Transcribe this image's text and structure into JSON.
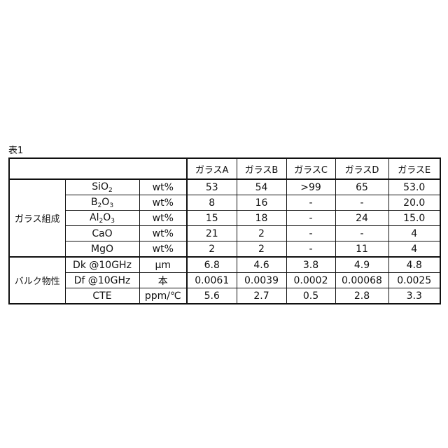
{
  "caption": "表1",
  "headers": [
    "ガラスA",
    "ガラスB",
    "ガラスC",
    "ガラスD",
    "ガラスE"
  ],
  "groups": [
    {
      "label": "ガラス組成",
      "rows": [
        {
          "item": [
            {
              "t": "SiO"
            },
            {
              "t": "2",
              "sub": true
            }
          ],
          "unit": "wt%",
          "values": [
            "53",
            "54",
            ">99",
            "65",
            "53.0"
          ]
        },
        {
          "item": [
            {
              "t": "B"
            },
            {
              "t": "2",
              "sub": true
            },
            {
              "t": "O"
            },
            {
              "t": "3",
              "sub": true
            }
          ],
          "unit": "wt%",
          "values": [
            "8",
            "16",
            "-",
            "-",
            "20.0"
          ]
        },
        {
          "item": [
            {
              "t": "Al"
            },
            {
              "t": "2",
              "sub": true
            },
            {
              "t": "O"
            },
            {
              "t": "3",
              "sub": true
            }
          ],
          "unit": "wt%",
          "values": [
            "15",
            "18",
            "-",
            "24",
            "15.0"
          ]
        },
        {
          "item": [
            {
              "t": "CaO"
            }
          ],
          "unit": "wt%",
          "values": [
            "21",
            "2",
            "-",
            "-",
            "4"
          ]
        },
        {
          "item": [
            {
              "t": "MgO"
            }
          ],
          "unit": "wt%",
          "values": [
            "2",
            "2",
            "-",
            "11",
            "4"
          ]
        }
      ]
    },
    {
      "label": "バルク物性",
      "rows": [
        {
          "item": [
            {
              "t": "Dk @10GHz"
            }
          ],
          "unit": "μm",
          "values": [
            "6.8",
            "4.6",
            "3.8",
            "4.9",
            "4.8"
          ]
        },
        {
          "item": [
            {
              "t": "Df @10GHz"
            }
          ],
          "unit": "本",
          "values": [
            "0.0061",
            "0.0039",
            "0.0002",
            "0.00068",
            "0.0025"
          ]
        },
        {
          "item": [
            {
              "t": "CTE"
            }
          ],
          "unit": "ppm/℃",
          "values": [
            "5.6",
            "2.7",
            "0.5",
            "2.8",
            "3.3"
          ]
        }
      ]
    }
  ]
}
